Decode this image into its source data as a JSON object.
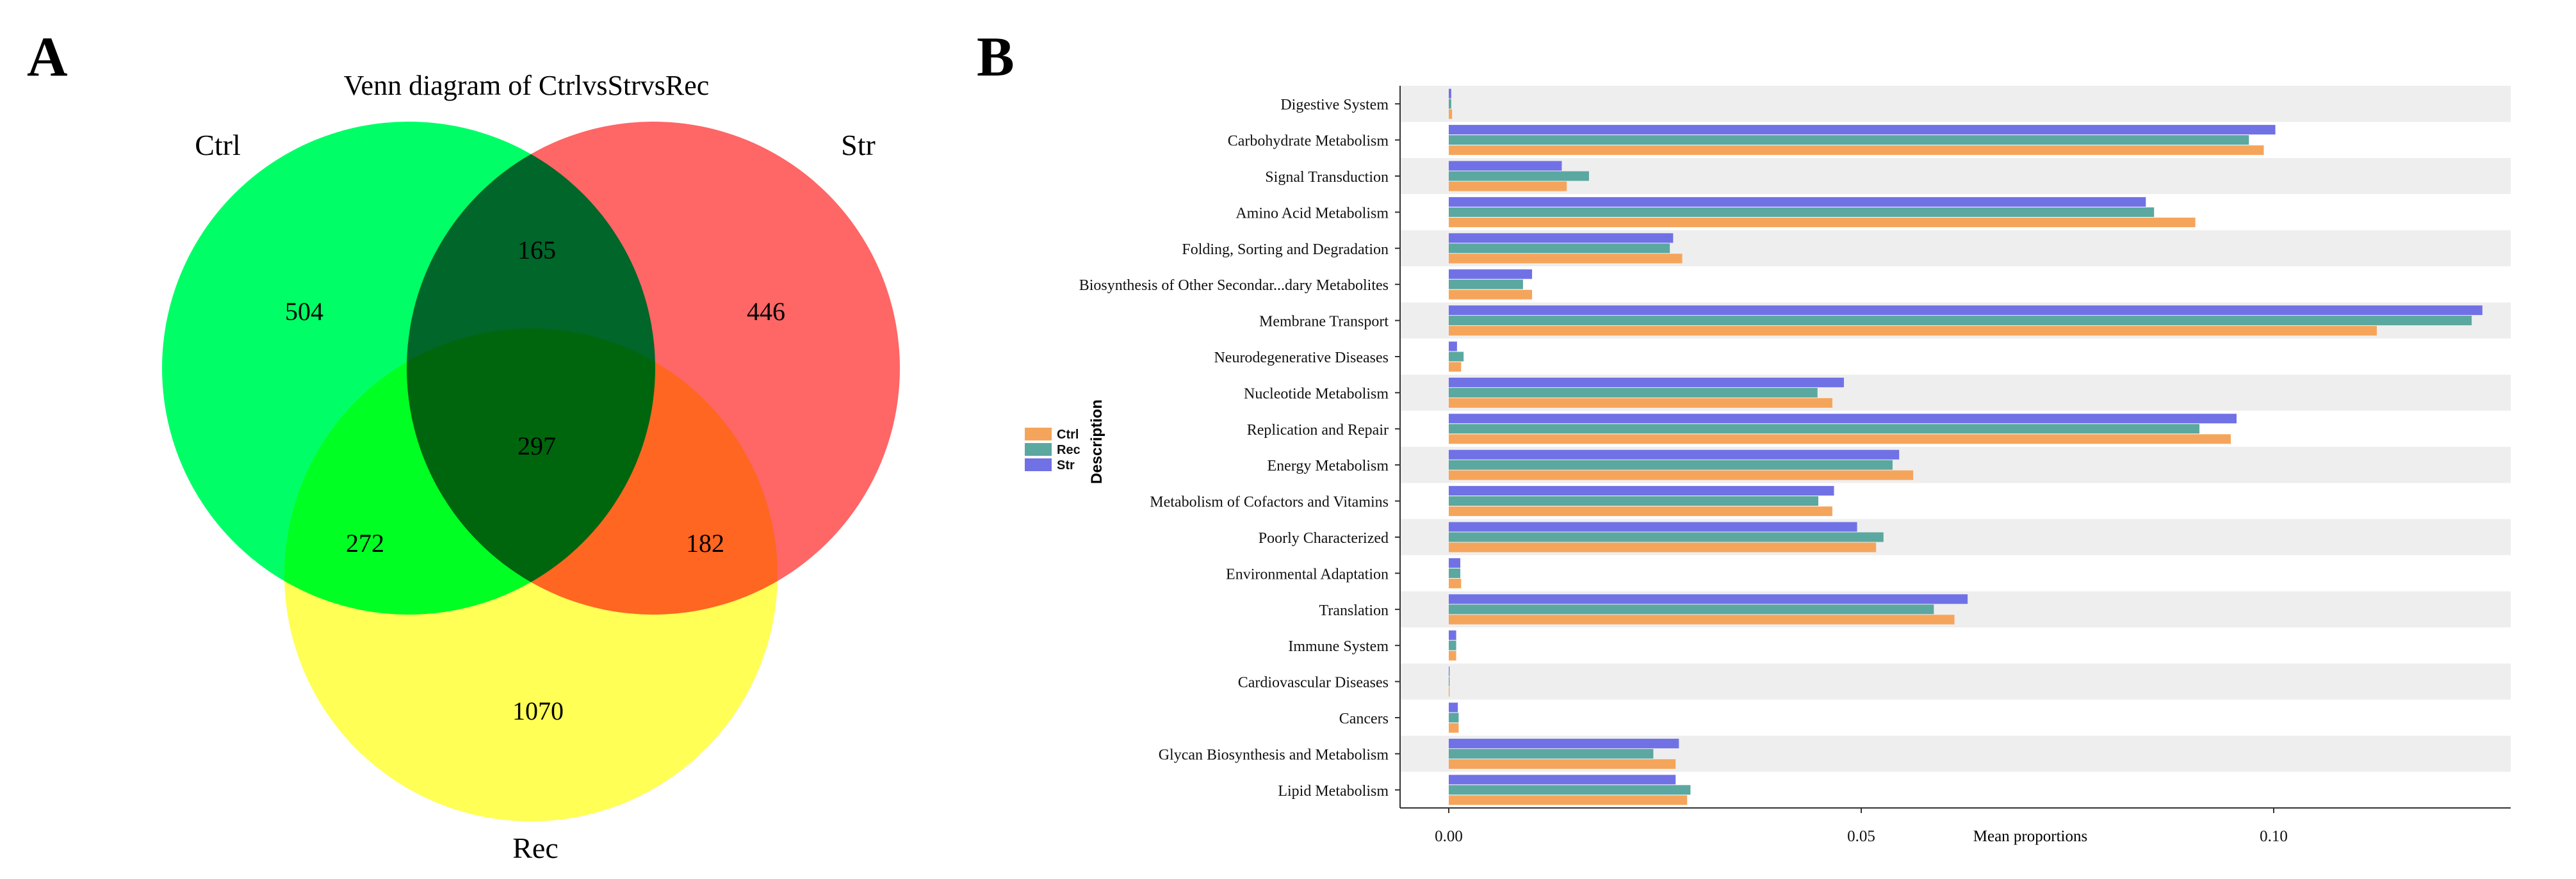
{
  "panels": {
    "a_label": "A",
    "b_label": "B"
  },
  "chart_data": [
    {
      "type": "venn",
      "title": "Venn diagram of CtrlvsStrvsRec",
      "sets": [
        {
          "name": "Ctrl",
          "color": "#00FF66"
        },
        {
          "name": "Str",
          "color": "#FF6666"
        },
        {
          "name": "Rec",
          "color": "#FFFF55"
        }
      ],
      "regions": {
        "ctrl_only": "504",
        "str_only": "446",
        "rec_only": "1070",
        "ctrl_str": "165",
        "ctrl_rec": "272",
        "str_rec": "182",
        "all": "297"
      }
    },
    {
      "type": "bar",
      "orientation": "horizontal",
      "xlabel": "Mean proportions",
      "ylabel": "Description",
      "xlim": [
        -0.0065,
        0.1295
      ],
      "xticks": [
        0.0,
        0.05,
        0.1
      ],
      "xtick_labels": [
        "0.00",
        "0.05",
        "0.10"
      ],
      "legend_position": "left",
      "categories": [
        "Digestive System",
        "Carbohydrate Metabolism",
        "Signal Transduction",
        "Amino Acid Metabolism",
        "Folding, Sorting and Degradation",
        "Biosynthesis of Other Secondar...dary Metabolites",
        "Membrane Transport",
        "Neurodegenerative Diseases",
        "Nucleotide Metabolism",
        "Replication and Repair",
        "Energy Metabolism",
        "Metabolism of Cofactors and Vitamins",
        "Poorly Characterized",
        "Environmental Adaptation",
        "Translation",
        "Immune System",
        "Cardiovascular Diseases",
        "Cancers",
        "Glycan Biosynthesis and Metabolism",
        "Lipid Metabolism"
      ],
      "series": [
        {
          "name": "Str",
          "color": "#7171E6",
          "values": [
            0.0003,
            0.1002,
            0.0137,
            0.0845,
            0.0272,
            0.0101,
            0.1253,
            0.001,
            0.0479,
            0.0955,
            0.0546,
            0.0467,
            0.0495,
            0.0014,
            0.0629,
            0.0009,
            0.0001,
            0.0011,
            0.0279,
            0.0275
          ]
        },
        {
          "name": "Rec",
          "color": "#5BA8A0",
          "values": [
            0.0003,
            0.097,
            0.017,
            0.0855,
            0.0268,
            0.009,
            0.124,
            0.0018,
            0.0447,
            0.091,
            0.0538,
            0.0448,
            0.0527,
            0.0014,
            0.0588,
            0.0009,
            0.0001,
            0.0012,
            0.0248,
            0.0293
          ]
        },
        {
          "name": "Ctrl",
          "color": "#F5A55B",
          "values": [
            0.0004,
            0.0988,
            0.0143,
            0.0905,
            0.0283,
            0.0101,
            0.1125,
            0.0015,
            0.0465,
            0.0948,
            0.0563,
            0.0465,
            0.0518,
            0.0015,
            0.0613,
            0.0009,
            0.0001,
            0.0012,
            0.0275,
            0.0289
          ]
        }
      ]
    }
  ]
}
